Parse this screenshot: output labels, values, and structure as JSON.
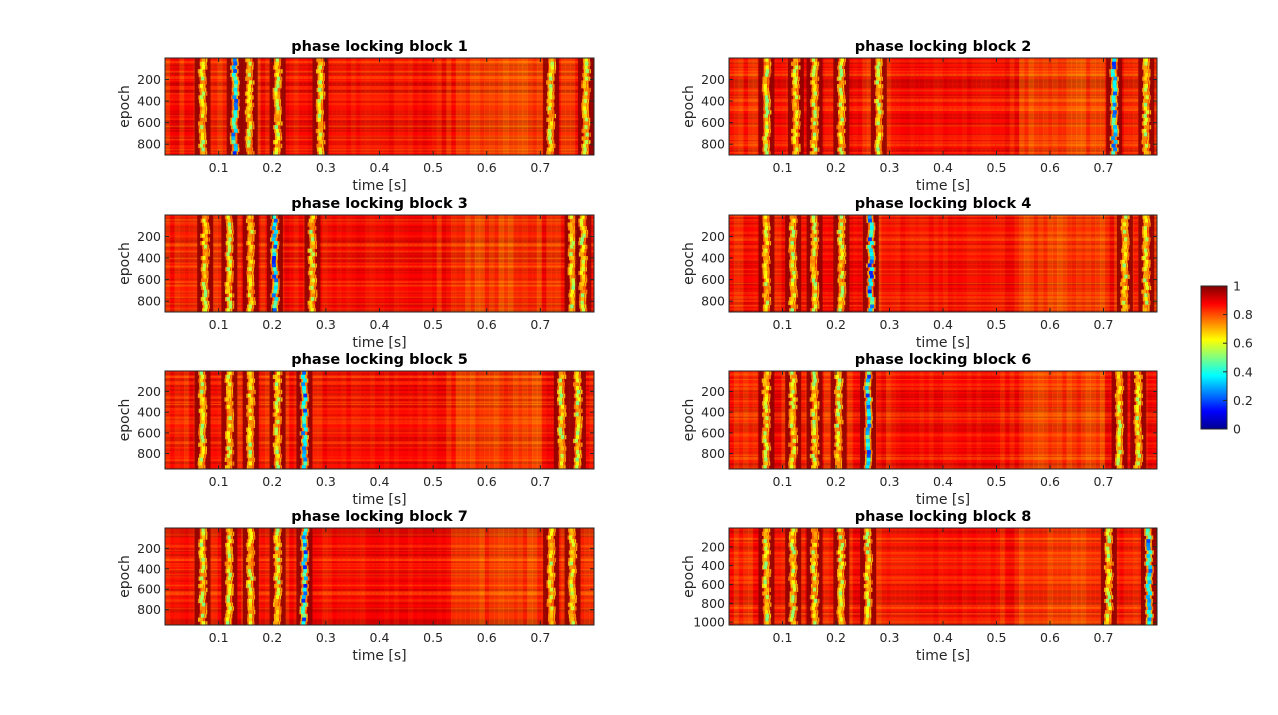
{
  "colors": {
    "background": "#ffffff",
    "axis": "#262626",
    "colormap": "jet",
    "colormap_stops": [
      "#00008f",
      "#0000ff",
      "#0080ff",
      "#00ffff",
      "#80ff80",
      "#ffff00",
      "#ff8000",
      "#ff0000",
      "#800000"
    ]
  },
  "chart_data": [
    {
      "type": "heatmap",
      "title": "phase locking block 1",
      "xlabel": "time [s]",
      "ylabel": "epoch",
      "xlim": [
        0,
        0.8
      ],
      "ylim": [
        1,
        900
      ],
      "xticks": [
        0.1,
        0.2,
        0.3,
        0.4,
        0.5,
        0.6,
        0.7
      ],
      "yticks": [
        200,
        400,
        600,
        800
      ],
      "low_locking_bands_s": [
        0.07,
        0.13,
        0.158,
        0.21,
        0.29,
        0.72,
        0.785
      ],
      "prominent_low_band_s": 0.13,
      "value_range": [
        0,
        1
      ]
    },
    {
      "type": "heatmap",
      "title": "phase locking block 2",
      "xlabel": "time [s]",
      "ylabel": "epoch",
      "xlim": [
        0,
        0.8
      ],
      "ylim": [
        1,
        900
      ],
      "xticks": [
        0.1,
        0.2,
        0.3,
        0.4,
        0.5,
        0.6,
        0.7
      ],
      "yticks": [
        200,
        400,
        600,
        800
      ],
      "low_locking_bands_s": [
        0.07,
        0.125,
        0.16,
        0.21,
        0.28,
        0.72,
        0.78
      ],
      "prominent_low_band_s": 0.72,
      "value_range": [
        0,
        1
      ]
    },
    {
      "type": "heatmap",
      "title": "phase locking block 3",
      "xlabel": "time [s]",
      "ylabel": "epoch",
      "xlim": [
        0,
        0.8
      ],
      "ylim": [
        1,
        900
      ],
      "xticks": [
        0.1,
        0.2,
        0.3,
        0.4,
        0.5,
        0.6,
        0.7
      ],
      "yticks": [
        200,
        400,
        600,
        800
      ],
      "low_locking_bands_s": [
        0.075,
        0.12,
        0.16,
        0.205,
        0.275,
        0.76,
        0.78
      ],
      "prominent_low_band_s": 0.205,
      "value_range": [
        0,
        1
      ]
    },
    {
      "type": "heatmap",
      "title": "phase locking block 4",
      "xlabel": "time [s]",
      "ylabel": "epoch",
      "xlim": [
        0,
        0.8
      ],
      "ylim": [
        1,
        900
      ],
      "xticks": [
        0.1,
        0.2,
        0.3,
        0.4,
        0.5,
        0.6,
        0.7
      ],
      "yticks": [
        200,
        400,
        600,
        800
      ],
      "low_locking_bands_s": [
        0.07,
        0.12,
        0.16,
        0.21,
        0.265,
        0.74,
        0.78
      ],
      "prominent_low_band_s": 0.265,
      "value_range": [
        0,
        1
      ]
    },
    {
      "type": "heatmap",
      "title": "phase locking block 5",
      "xlabel": "time [s]",
      "ylabel": "epoch",
      "xlim": [
        0,
        0.8
      ],
      "ylim": [
        1,
        950
      ],
      "xticks": [
        0.1,
        0.2,
        0.3,
        0.4,
        0.5,
        0.6,
        0.7
      ],
      "yticks": [
        200,
        400,
        600,
        800
      ],
      "low_locking_bands_s": [
        0.07,
        0.12,
        0.16,
        0.21,
        0.26,
        0.74,
        0.77
      ],
      "prominent_low_band_s": 0.26,
      "value_range": [
        0,
        1
      ]
    },
    {
      "type": "heatmap",
      "title": "phase locking block 6",
      "xlabel": "time [s]",
      "ylabel": "epoch",
      "xlim": [
        0,
        0.8
      ],
      "ylim": [
        1,
        950
      ],
      "xticks": [
        0.1,
        0.2,
        0.3,
        0.4,
        0.5,
        0.6,
        0.7
      ],
      "yticks": [
        200,
        400,
        600,
        800
      ],
      "low_locking_bands_s": [
        0.07,
        0.12,
        0.16,
        0.205,
        0.26,
        0.73,
        0.765
      ],
      "prominent_low_band_s": 0.26,
      "value_range": [
        0,
        1
      ]
    },
    {
      "type": "heatmap",
      "title": "phase locking block 7",
      "xlabel": "time [s]",
      "ylabel": "epoch",
      "xlim": [
        0,
        0.8
      ],
      "ylim": [
        1,
        950
      ],
      "xticks": [
        0.1,
        0.2,
        0.3,
        0.4,
        0.5,
        0.6,
        0.7
      ],
      "yticks": [
        200,
        400,
        600,
        800
      ],
      "low_locking_bands_s": [
        0.07,
        0.12,
        0.16,
        0.21,
        0.26,
        0.72,
        0.76
      ],
      "prominent_low_band_s": 0.26,
      "value_range": [
        0,
        1
      ]
    },
    {
      "type": "heatmap",
      "title": "phase locking block 8",
      "xlabel": "time [s]",
      "ylabel": "epoch",
      "xlim": [
        0,
        0.8
      ],
      "ylim": [
        1,
        1030
      ],
      "xticks": [
        0.1,
        0.2,
        0.3,
        0.4,
        0.5,
        0.6,
        0.7
      ],
      "yticks": [
        200,
        400,
        600,
        800,
        1000
      ],
      "low_locking_bands_s": [
        0.07,
        0.12,
        0.16,
        0.21,
        0.26,
        0.71,
        0.785
      ],
      "prominent_low_band_s": 0.785,
      "value_range": [
        0,
        1
      ]
    }
  ],
  "colorbar": {
    "ticks": [
      0,
      0.2,
      0.4,
      0.6,
      0.8,
      1
    ],
    "tick_labels": [
      "0",
      "0.2",
      "0.4",
      "0.6",
      "0.8",
      "1"
    ],
    "range": [
      0,
      1
    ]
  }
}
